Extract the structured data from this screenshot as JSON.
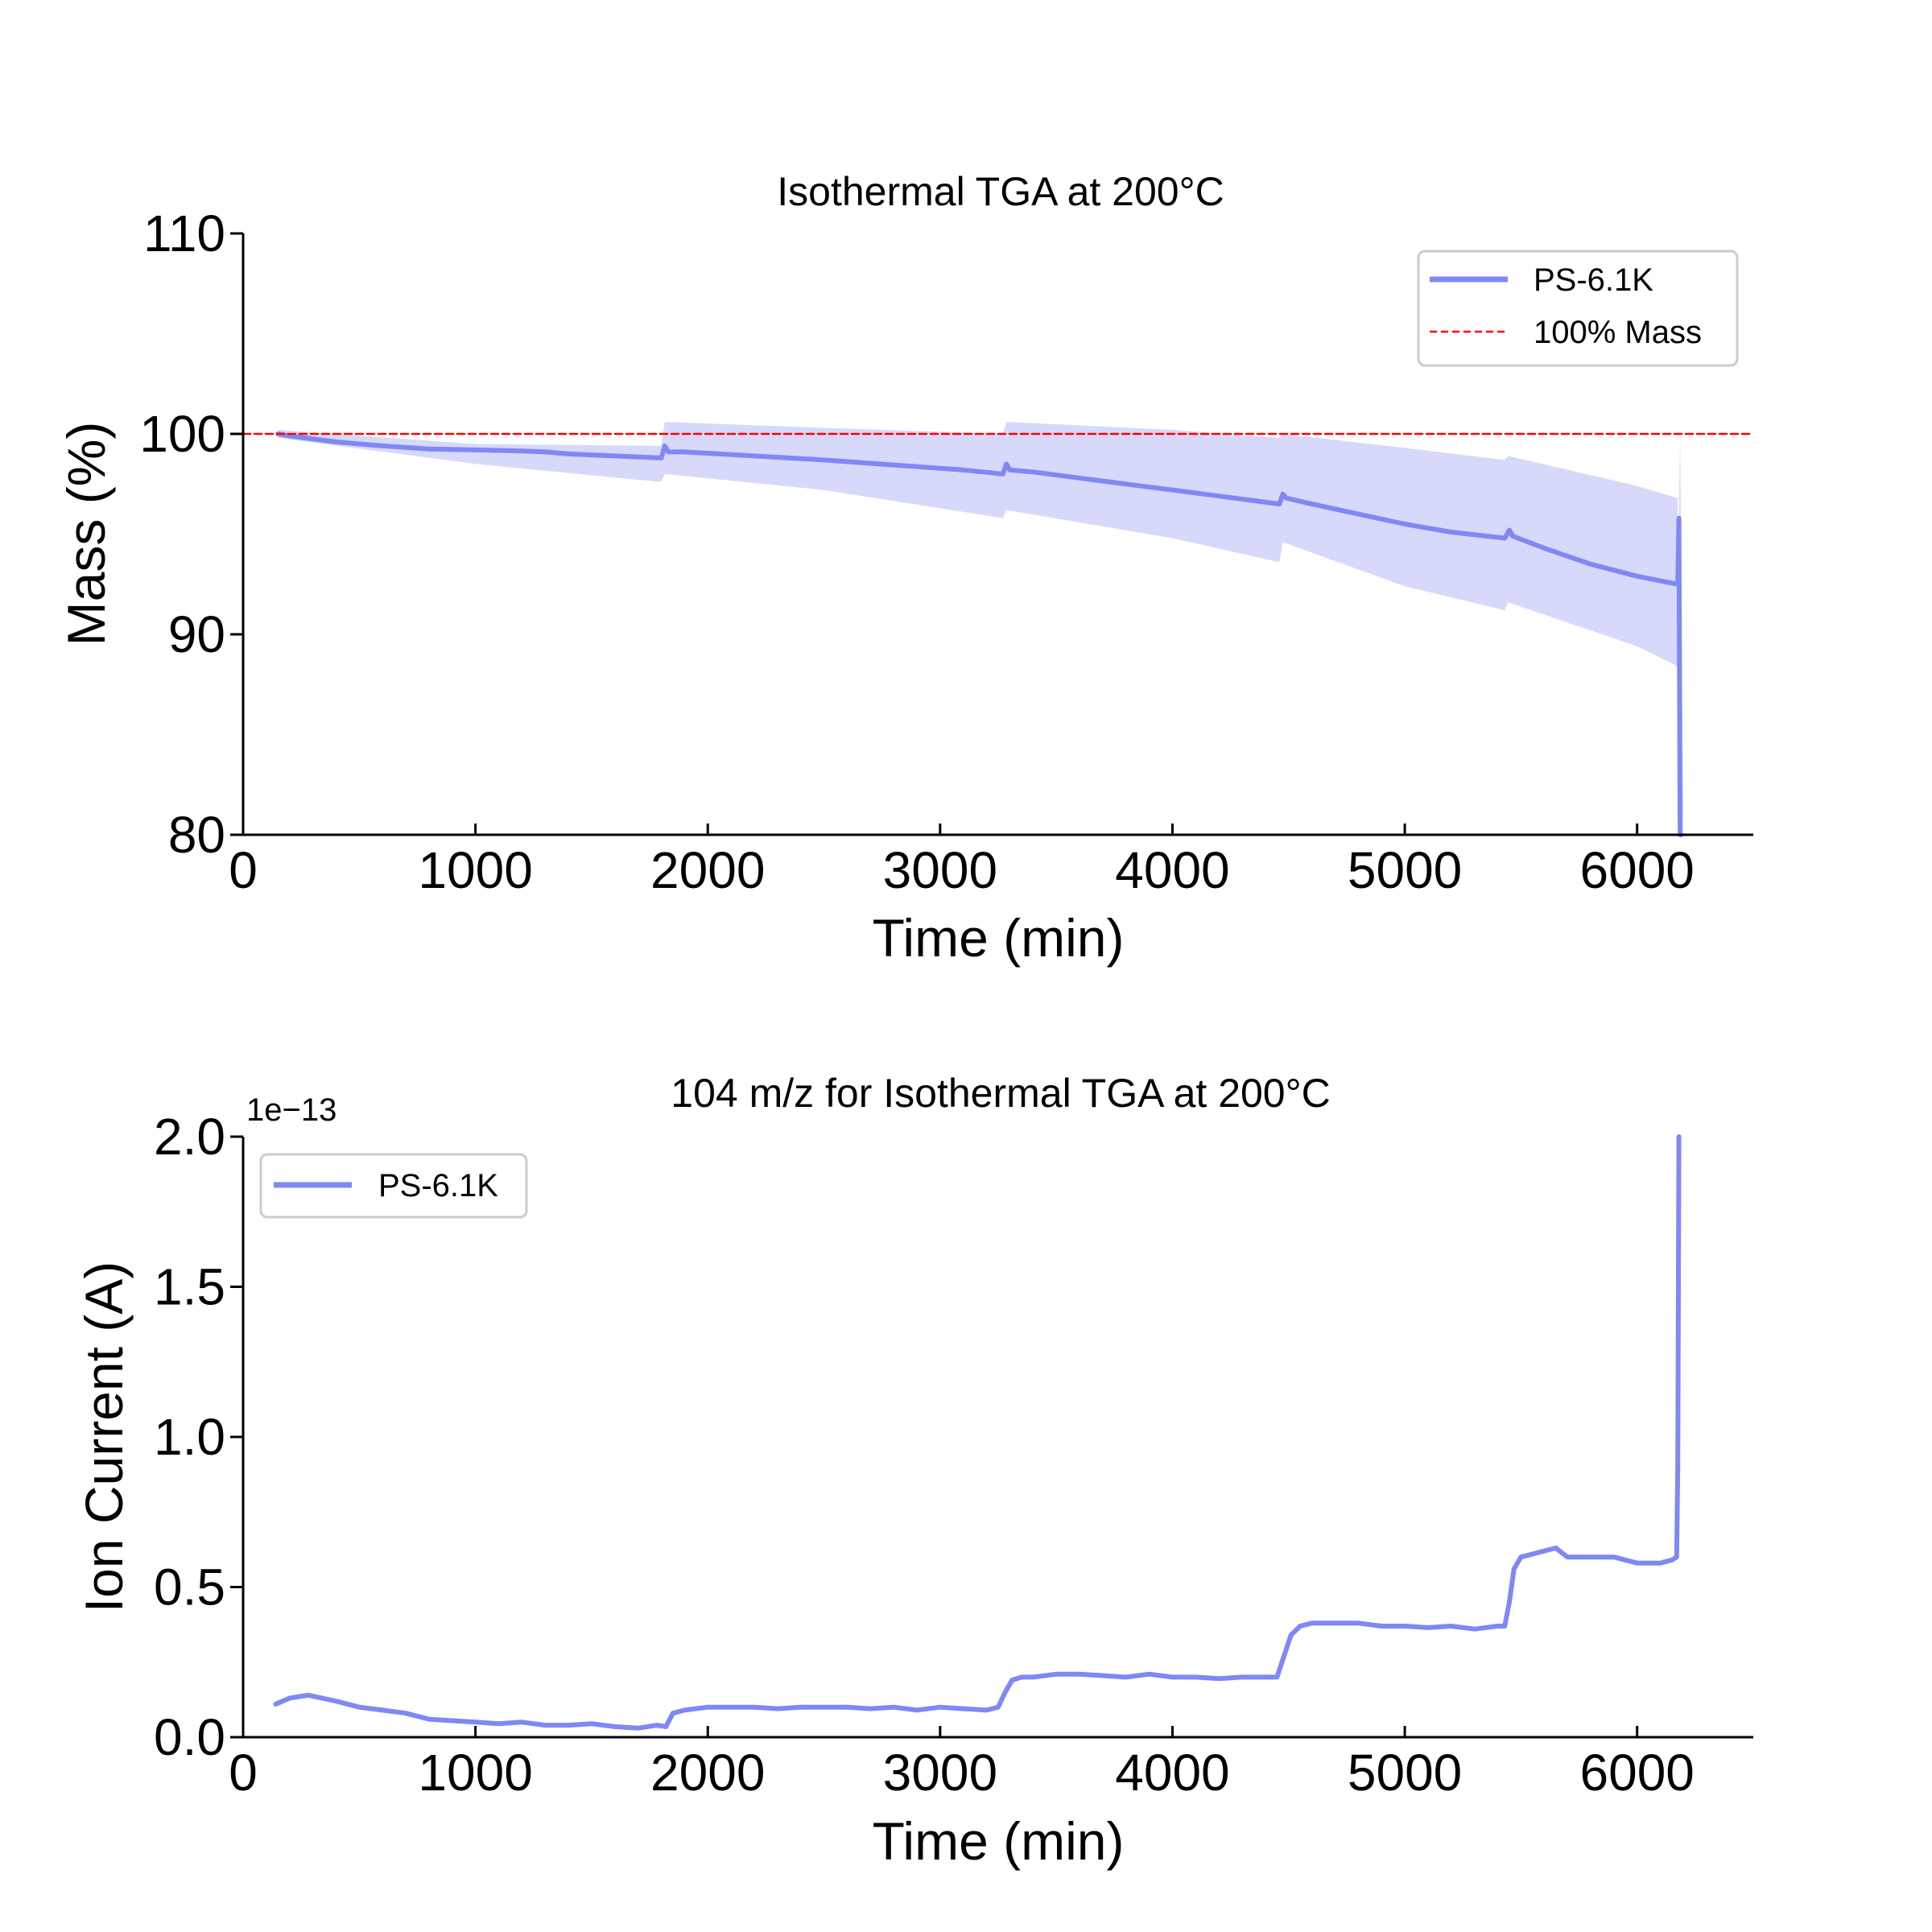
{
  "chart_data": [
    {
      "type": "line",
      "title": "Isothermal TGA at 200°C",
      "xlabel": "Time (min)",
      "ylabel": "Mass (%)",
      "xlim": [
        0,
        6500
      ],
      "ylim": [
        80,
        110
      ],
      "xticks": [
        0,
        1000,
        2000,
        3000,
        4000,
        5000,
        6000
      ],
      "yticks": [
        80,
        90,
        100,
        110
      ],
      "grid": false,
      "legend_position": "top-right",
      "series": [
        {
          "name": "PS-6.1K",
          "color": "#8088f4",
          "x": [
            150,
            200,
            400,
            600,
            800,
            1000,
            1200,
            1300,
            1400,
            1600,
            1800,
            1815,
            1830,
            1900,
            2200,
            2500,
            2800,
            3100,
            3270,
            3285,
            3300,
            3400,
            3600,
            3800,
            4000,
            4200,
            4460,
            4475,
            4490,
            4600,
            4800,
            5000,
            5200,
            5430,
            5450,
            5465,
            5600,
            5800,
            6000,
            6175,
            6180,
            6185,
            6190
          ],
          "y": [
            100.0,
            99.9,
            99.6,
            99.4,
            99.25,
            99.2,
            99.15,
            99.1,
            99.0,
            98.9,
            98.8,
            99.4,
            99.1,
            99.1,
            98.9,
            98.7,
            98.45,
            98.2,
            98.0,
            98.5,
            98.2,
            98.1,
            97.8,
            97.5,
            97.2,
            96.9,
            96.5,
            97.0,
            96.8,
            96.5,
            96.0,
            95.5,
            95.1,
            94.8,
            95.2,
            94.9,
            94.3,
            93.5,
            92.9,
            92.5,
            95.8,
            80.0,
            80.0
          ]
        },
        {
          "name": "100% Mass",
          "style": "dashed",
          "color": "#ff0000",
          "x": [
            0,
            6500
          ],
          "y": [
            100,
            100
          ]
        }
      ],
      "band": {
        "color": "#d7d9fb",
        "x": [
          150,
          1000,
          1800,
          1815,
          2500,
          3270,
          3285,
          4000,
          4460,
          4475,
          5000,
          5430,
          5445,
          6000,
          6175
        ],
        "upper": [
          100.2,
          99.5,
          99.4,
          100.6,
          100.3,
          100.0,
          100.6,
          100.2,
          99.8,
          100.0,
          99.3,
          98.7,
          98.9,
          97.4,
          96.8
        ],
        "lower": [
          99.8,
          98.5,
          97.6,
          98.0,
          97.2,
          95.8,
          96.2,
          94.8,
          93.6,
          94.6,
          92.4,
          91.2,
          91.6,
          89.4,
          88.4
        ],
        "spike_x": 6185,
        "spike_top": 100.0
      }
    },
    {
      "type": "line",
      "title": "104 m/z for Isothermal TGA at 200°C",
      "xlabel": "Time (min)",
      "ylabel": "Ion Current (A)",
      "y_offset_label": "1e−13",
      "xlim": [
        0,
        6500
      ],
      "ylim": [
        0.0,
        2.0
      ],
      "xticks": [
        0,
        1000,
        2000,
        3000,
        4000,
        5000,
        6000
      ],
      "yticks": [
        0.0,
        0.5,
        1.0,
        1.5,
        2.0
      ],
      "grid": false,
      "legend_position": "top-left",
      "series": [
        {
          "name": "PS-6.1K",
          "color": "#8088f4",
          "x": [
            140,
            200,
            280,
            400,
            500,
            600,
            700,
            800,
            900,
            1000,
            1100,
            1200,
            1300,
            1400,
            1500,
            1600,
            1700,
            1780,
            1820,
            1850,
            1900,
            2000,
            2100,
            2200,
            2300,
            2400,
            2500,
            2600,
            2700,
            2800,
            2900,
            3000,
            3100,
            3200,
            3250,
            3280,
            3310,
            3350,
            3400,
            3500,
            3600,
            3700,
            3800,
            3900,
            4000,
            4100,
            4200,
            4300,
            4400,
            4450,
            4480,
            4510,
            4550,
            4600,
            4700,
            4800,
            4900,
            5000,
            5100,
            5200,
            5300,
            5400,
            5430,
            5450,
            5470,
            5500,
            5550,
            5600,
            5650,
            5700,
            5800,
            5900,
            6000,
            6100,
            6150,
            6170,
            6175,
            6180
          ],
          "y": [
            0.11,
            0.13,
            0.14,
            0.12,
            0.1,
            0.09,
            0.08,
            0.06,
            0.055,
            0.05,
            0.045,
            0.05,
            0.04,
            0.04,
            0.045,
            0.035,
            0.03,
            0.04,
            0.035,
            0.08,
            0.09,
            0.1,
            0.1,
            0.1,
            0.095,
            0.1,
            0.1,
            0.1,
            0.095,
            0.1,
            0.09,
            0.1,
            0.095,
            0.09,
            0.1,
            0.15,
            0.19,
            0.2,
            0.2,
            0.21,
            0.21,
            0.205,
            0.2,
            0.21,
            0.2,
            0.2,
            0.195,
            0.2,
            0.2,
            0.2,
            0.27,
            0.34,
            0.37,
            0.38,
            0.38,
            0.38,
            0.37,
            0.37,
            0.365,
            0.37,
            0.36,
            0.37,
            0.37,
            0.45,
            0.56,
            0.6,
            0.61,
            0.62,
            0.63,
            0.6,
            0.6,
            0.6,
            0.58,
            0.58,
            0.59,
            0.6,
            0.9,
            2.0
          ]
        }
      ]
    }
  ]
}
